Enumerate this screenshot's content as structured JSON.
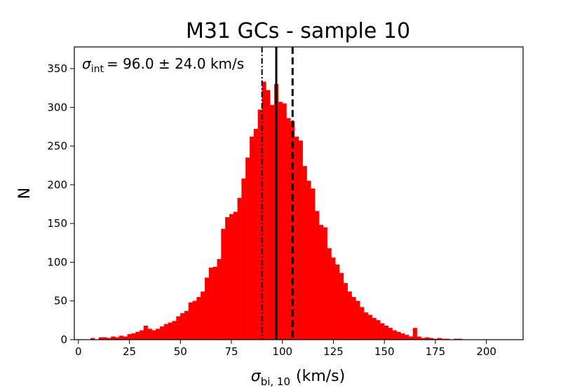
{
  "chart_data": {
    "type": "bar",
    "title": "M31 GCs - sample 10",
    "xlabel": {
      "symbol": "σ",
      "subscript": "bi, 10",
      "unit": "(km/s)"
    },
    "ylabel": "N",
    "xlim": [
      -2,
      218
    ],
    "ylim": [
      0,
      378
    ],
    "xticks": [
      0,
      25,
      50,
      75,
      100,
      125,
      150,
      175,
      200
    ],
    "yticks": [
      0,
      50,
      100,
      150,
      200,
      250,
      300,
      350
    ],
    "bar_color": "#ff0000",
    "bin_width": 2,
    "bins": [
      {
        "x": 6,
        "n": 2
      },
      {
        "x": 8,
        "n": 0
      },
      {
        "x": 10,
        "n": 3
      },
      {
        "x": 12,
        "n": 3
      },
      {
        "x": 14,
        "n": 2
      },
      {
        "x": 16,
        "n": 4
      },
      {
        "x": 18,
        "n": 3
      },
      {
        "x": 20,
        "n": 5
      },
      {
        "x": 22,
        "n": 4
      },
      {
        "x": 24,
        "n": 7
      },
      {
        "x": 26,
        "n": 8
      },
      {
        "x": 28,
        "n": 10
      },
      {
        "x": 30,
        "n": 12
      },
      {
        "x": 32,
        "n": 18
      },
      {
        "x": 34,
        "n": 14
      },
      {
        "x": 36,
        "n": 12
      },
      {
        "x": 38,
        "n": 14
      },
      {
        "x": 40,
        "n": 17
      },
      {
        "x": 42,
        "n": 20
      },
      {
        "x": 44,
        "n": 22
      },
      {
        "x": 46,
        "n": 24
      },
      {
        "x": 48,
        "n": 30
      },
      {
        "x": 50,
        "n": 34
      },
      {
        "x": 52,
        "n": 37
      },
      {
        "x": 54,
        "n": 48
      },
      {
        "x": 56,
        "n": 50
      },
      {
        "x": 58,
        "n": 55
      },
      {
        "x": 60,
        "n": 62
      },
      {
        "x": 62,
        "n": 80
      },
      {
        "x": 64,
        "n": 93
      },
      {
        "x": 66,
        "n": 94
      },
      {
        "x": 68,
        "n": 104
      },
      {
        "x": 70,
        "n": 143
      },
      {
        "x": 72,
        "n": 158
      },
      {
        "x": 74,
        "n": 162
      },
      {
        "x": 76,
        "n": 165
      },
      {
        "x": 78,
        "n": 183
      },
      {
        "x": 80,
        "n": 208
      },
      {
        "x": 82,
        "n": 235
      },
      {
        "x": 84,
        "n": 262
      },
      {
        "x": 86,
        "n": 272
      },
      {
        "x": 88,
        "n": 297
      },
      {
        "x": 90,
        "n": 333
      },
      {
        "x": 92,
        "n": 322
      },
      {
        "x": 94,
        "n": 303
      },
      {
        "x": 96,
        "n": 330
      },
      {
        "x": 98,
        "n": 307
      },
      {
        "x": 100,
        "n": 305
      },
      {
        "x": 102,
        "n": 286
      },
      {
        "x": 104,
        "n": 282
      },
      {
        "x": 106,
        "n": 262
      },
      {
        "x": 108,
        "n": 257
      },
      {
        "x": 110,
        "n": 224
      },
      {
        "x": 112,
        "n": 205
      },
      {
        "x": 114,
        "n": 195
      },
      {
        "x": 116,
        "n": 166
      },
      {
        "x": 118,
        "n": 148
      },
      {
        "x": 120,
        "n": 145
      },
      {
        "x": 122,
        "n": 118
      },
      {
        "x": 124,
        "n": 106
      },
      {
        "x": 126,
        "n": 97
      },
      {
        "x": 128,
        "n": 86
      },
      {
        "x": 130,
        "n": 73
      },
      {
        "x": 132,
        "n": 62
      },
      {
        "x": 134,
        "n": 55
      },
      {
        "x": 136,
        "n": 50
      },
      {
        "x": 138,
        "n": 42
      },
      {
        "x": 140,
        "n": 35
      },
      {
        "x": 142,
        "n": 32
      },
      {
        "x": 144,
        "n": 28
      },
      {
        "x": 146,
        "n": 25
      },
      {
        "x": 148,
        "n": 21
      },
      {
        "x": 150,
        "n": 18
      },
      {
        "x": 152,
        "n": 15
      },
      {
        "x": 154,
        "n": 12
      },
      {
        "x": 156,
        "n": 10
      },
      {
        "x": 158,
        "n": 8
      },
      {
        "x": 160,
        "n": 6
      },
      {
        "x": 162,
        "n": 4
      },
      {
        "x": 164,
        "n": 15
      },
      {
        "x": 166,
        "n": 4
      },
      {
        "x": 168,
        "n": 2
      },
      {
        "x": 170,
        "n": 3
      },
      {
        "x": 172,
        "n": 2
      },
      {
        "x": 174,
        "n": 1
      },
      {
        "x": 176,
        "n": 2
      },
      {
        "x": 178,
        "n": 1
      },
      {
        "x": 180,
        "n": 1
      },
      {
        "x": 182,
        "n": 0
      },
      {
        "x": 184,
        "n": 1
      },
      {
        "x": 186,
        "n": 1
      }
    ],
    "vlines": [
      {
        "x": 90.0,
        "style": "dashdot"
      },
      {
        "x": 97.0,
        "style": "solid"
      },
      {
        "x": 105.0,
        "style": "dashed"
      }
    ],
    "annotation": {
      "symbol": "σ",
      "subscript": "int",
      "text": "= 96.0 ± 24.0 km/s"
    },
    "grid": false,
    "legend": "none"
  }
}
